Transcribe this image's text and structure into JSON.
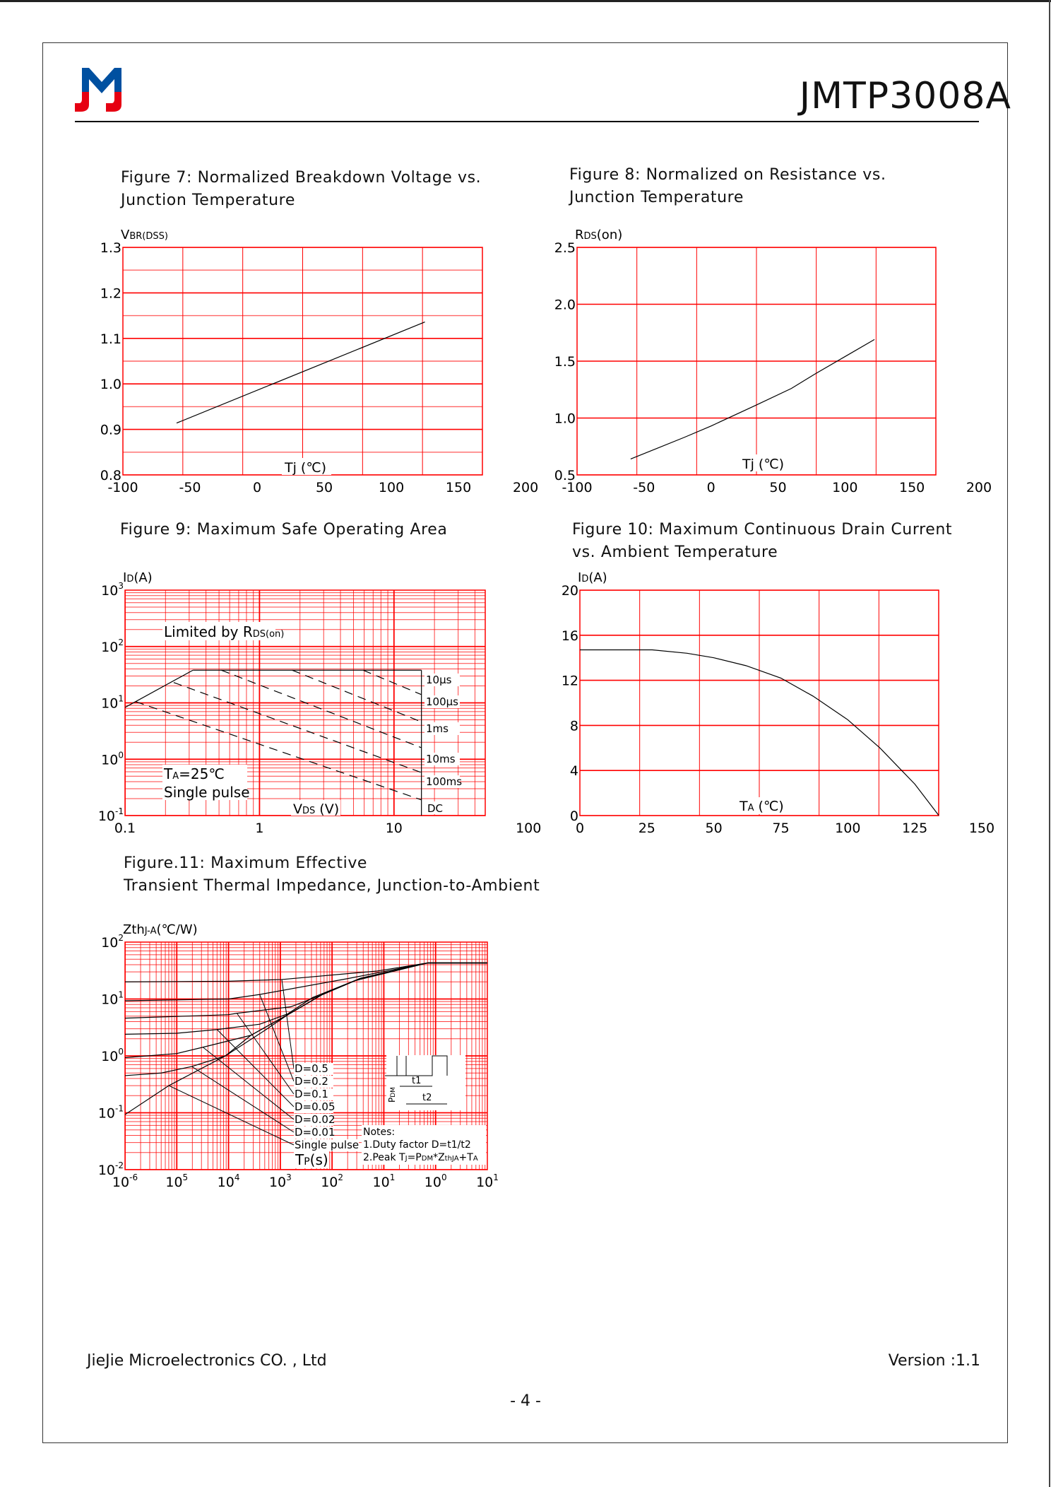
{
  "header": {
    "title": "JMTP3008A",
    "logo_colors": {
      "blue": "#0050a0",
      "red": "#e60012"
    }
  },
  "figures": [
    {
      "title_line1": "Figure 7: Normalized Breakdown Voltage vs.",
      "title_line2": "Junction Temperature"
    },
    {
      "title_line1": "Figure 8: Normalized on Resistance vs.",
      "title_line2": "Junction Temperature"
    },
    {
      "title_line1": "Figure 9: Maximum Safe Operating Area",
      "title_line2": ""
    },
    {
      "title_line1": "Figure 10: Maximum Continuous Drain Current",
      "title_line2": "vs. Ambient Temperature"
    },
    {
      "title_line1": "Figure.11: Maximum Effective",
      "title_line2": "Transient Thermal Impedance, Junction-to-Ambient"
    }
  ],
  "colors": {
    "grid": "#ff0000",
    "curve": "#000000"
  },
  "chart_data": [
    {
      "type": "line",
      "ylabel": {
        "main": "V",
        "sub": "BR(DSS)"
      },
      "xlabel": "Tj (℃)",
      "xlim": [
        -100,
        200
      ],
      "ylim": [
        0.8,
        1.3
      ],
      "xticks": [
        "-100",
        "-50",
        "0",
        "50",
        "100",
        "150",
        "200"
      ],
      "yticks": [
        "0.8",
        "0.9",
        "1.0",
        "1.1",
        "1.2",
        "1.3"
      ],
      "grid": true,
      "series": [
        {
          "x": [
            -60,
            125
          ],
          "y": [
            0.914,
            1.136
          ]
        }
      ]
    },
    {
      "type": "line",
      "ylabel": {
        "main": "R",
        "sub": "DS",
        "rest": "(on)"
      },
      "xlabel": "Tj (℃)",
      "xlim": [
        -100,
        200
      ],
      "ylim": [
        0.5,
        2.5
      ],
      "xticks": [
        "-100",
        "-50",
        "0",
        "50",
        "100",
        "150",
        "200"
      ],
      "yticks": [
        "0.5",
        "1.0",
        "1.5",
        "2.0",
        "2.5"
      ],
      "grid": true,
      "series": [
        {
          "x": [
            -60,
            -20,
            0,
            33,
            60,
            78,
            100,
            122
          ],
          "y": [
            0.64,
            0.83,
            0.93,
            1.11,
            1.26,
            1.39,
            1.54,
            1.69
          ]
        }
      ]
    },
    {
      "type": "line",
      "scale": "log-log",
      "ylabel": {
        "main": "I",
        "sub": "D",
        "rest": "(A)"
      },
      "xlabel": {
        "main": "V",
        "sub": "DS",
        "rest": " (V)"
      },
      "xlim": [
        0.1,
        100
      ],
      "ylim": [
        0.1,
        1000
      ],
      "xticks": [
        "0.1",
        "1",
        "10",
        "100"
      ],
      "yticks": [
        {
          "base": "10",
          "exp": "3"
        },
        {
          "base": "10",
          "exp": "2"
        },
        {
          "base": "10",
          "exp": "1"
        },
        {
          "base": "10",
          "exp": "0"
        },
        {
          "base": "10",
          "exp": "-1"
        }
      ],
      "grid": true,
      "annotations": {
        "limited": "Limited by R",
        "limited_sub": "DS(on)",
        "ta": "T",
        "ta_sub": "A",
        "ta_rest": "=25℃",
        "single": "Single pulse"
      },
      "boundary": {
        "rdson": {
          "x": [
            0.1,
            0.32
          ],
          "y": [
            8.3,
            38
          ]
        },
        "current_limit": 38,
        "dc_voltage": 16
      },
      "series": [
        {
          "name": "10μs",
          "x": [
            5.9,
            16
          ],
          "y": [
            38,
            14
          ]
        },
        {
          "name": "100μs",
          "x": [
            1.75,
            16
          ],
          "y": [
            38,
            4.6
          ]
        },
        {
          "name": "1ms",
          "x": [
            0.52,
            16
          ],
          "y": [
            38,
            1.6
          ]
        },
        {
          "name": "10ms",
          "x": [
            0.23,
            16
          ],
          "y": [
            23,
            0.58
          ]
        },
        {
          "name": "100ms",
          "x": [
            0.12,
            16
          ],
          "y": [
            10.5,
            0.19
          ]
        }
      ],
      "dc_label": "DC"
    },
    {
      "type": "line",
      "ylabel": {
        "main": "I",
        "sub": "D",
        "rest": "(A)"
      },
      "xlabel": {
        "main": "T",
        "sub": "A",
        "rest": " (℃)"
      },
      "xlim": [
        0,
        150
      ],
      "ylim": [
        0,
        20
      ],
      "xticks": [
        "0",
        "25",
        "50",
        "75",
        "100",
        "125",
        "150"
      ],
      "yticks": [
        "0",
        "4",
        "8",
        "12",
        "16",
        "20"
      ],
      "grid": true,
      "series": [
        {
          "x": [
            0,
            27,
            40,
            50,
            62,
            75,
            87,
            100,
            112,
            125,
            134
          ],
          "y": [
            14.7,
            14.7,
            14.4,
            14.0,
            13.3,
            12.2,
            10.6,
            8.5,
            6.0,
            2.8,
            0
          ]
        }
      ]
    },
    {
      "type": "line",
      "scale": "log-log",
      "ylabel": {
        "main": "Zth",
        "sub": "J-A",
        "rest": "(℃/W)"
      },
      "xlabel": {
        "main": "T",
        "sub": "P",
        "rest": "(s)"
      },
      "xlim": [
        1e-06,
        10
      ],
      "ylim": [
        0.01,
        100
      ],
      "xticks": [
        {
          "base": "10",
          "exp": "-6"
        },
        {
          "base": "10",
          "exp": "5"
        },
        {
          "base": "10",
          "exp": "4"
        },
        {
          "base": "10",
          "exp": "3"
        },
        {
          "base": "10",
          "exp": "2"
        },
        {
          "base": "10",
          "exp": "1"
        },
        {
          "base": "10",
          "exp": "0"
        },
        {
          "base": "10",
          "exp": "1"
        }
      ],
      "yticks": [
        {
          "base": "10",
          "exp": "2"
        },
        {
          "base": "10",
          "exp": "1"
        },
        {
          "base": "10",
          "exp": "0"
        },
        {
          "base": "10",
          "exp": "-1"
        },
        {
          "base": "10",
          "exp": "-2"
        }
      ],
      "grid": true,
      "series": [
        {
          "name": "D=0.5",
          "x": [
            1e-06,
            0.0001,
            0.00107,
            0.074,
            0.7,
            10
          ],
          "y": [
            20,
            20.5,
            22,
            31,
            43,
            43
          ]
        },
        {
          "name": "D=0.2",
          "x": [
            1e-06,
            0.0001,
            0.0004,
            0.021,
            0.7,
            10
          ],
          "y": [
            9.3,
            10,
            12,
            23,
            43,
            43
          ]
        },
        {
          "name": "D=0.1",
          "x": [
            1e-06,
            0.0001,
            0.000145,
            0.0016,
            0.0063,
            0.028,
            0.7,
            10
          ],
          "y": [
            4.6,
            5.3,
            5.6,
            7.3,
            11.8,
            21,
            43,
            43
          ]
        },
        {
          "name": "D=0.05",
          "x": [
            1e-06,
            1e-05,
            6e-05,
            0.0004,
            0.0014,
            0.0042,
            0.035,
            0.7,
            10
          ],
          "y": [
            2.4,
            2.5,
            2.9,
            3.6,
            5.5,
            10.6,
            23,
            43,
            43
          ]
        },
        {
          "name": "D=0.02",
          "x": [
            1e-06,
            1e-05,
            3.2e-05,
            0.00027,
            0.0014,
            0.0063,
            0.035,
            0.7,
            10
          ],
          "y": [
            0.93,
            1.1,
            1.42,
            2.3,
            5.3,
            11.8,
            23,
            43,
            43
          ]
        },
        {
          "name": "D=0.01",
          "x": [
            1e-06,
            5e-06,
            1.95e-05,
            8.7e-05,
            0.0005,
            0.0014,
            0.0063,
            0.035,
            0.7,
            10
          ],
          "y": [
            0.45,
            0.5,
            0.65,
            1.0,
            2.8,
            5.3,
            11.8,
            23,
            43,
            43
          ]
        },
        {
          "name": "Single pulse",
          "x": [
            1e-06,
            7e-06,
            8.7e-05,
            0.00027,
            0.0014,
            0.0063,
            0.035,
            0.7,
            10
          ],
          "y": [
            0.093,
            0.3,
            1.0,
            2.3,
            5.3,
            11.8,
            23,
            43,
            43
          ]
        }
      ],
      "notes": [
        "Notes:",
        "1.Duty factor D=t1/t2",
        "2.Peak T",
        "J",
        "=P",
        "DM",
        "*Z",
        "thJA",
        "+T",
        "A"
      ],
      "inset": {
        "pdm": "P",
        "pdm_sub": "DM",
        "t1": "t1",
        "t2": "t2"
      }
    }
  ],
  "footer": {
    "company": "JieJie Microelectronics CO. , Ltd",
    "version": "Version :1.1",
    "page": "- 4 -"
  }
}
